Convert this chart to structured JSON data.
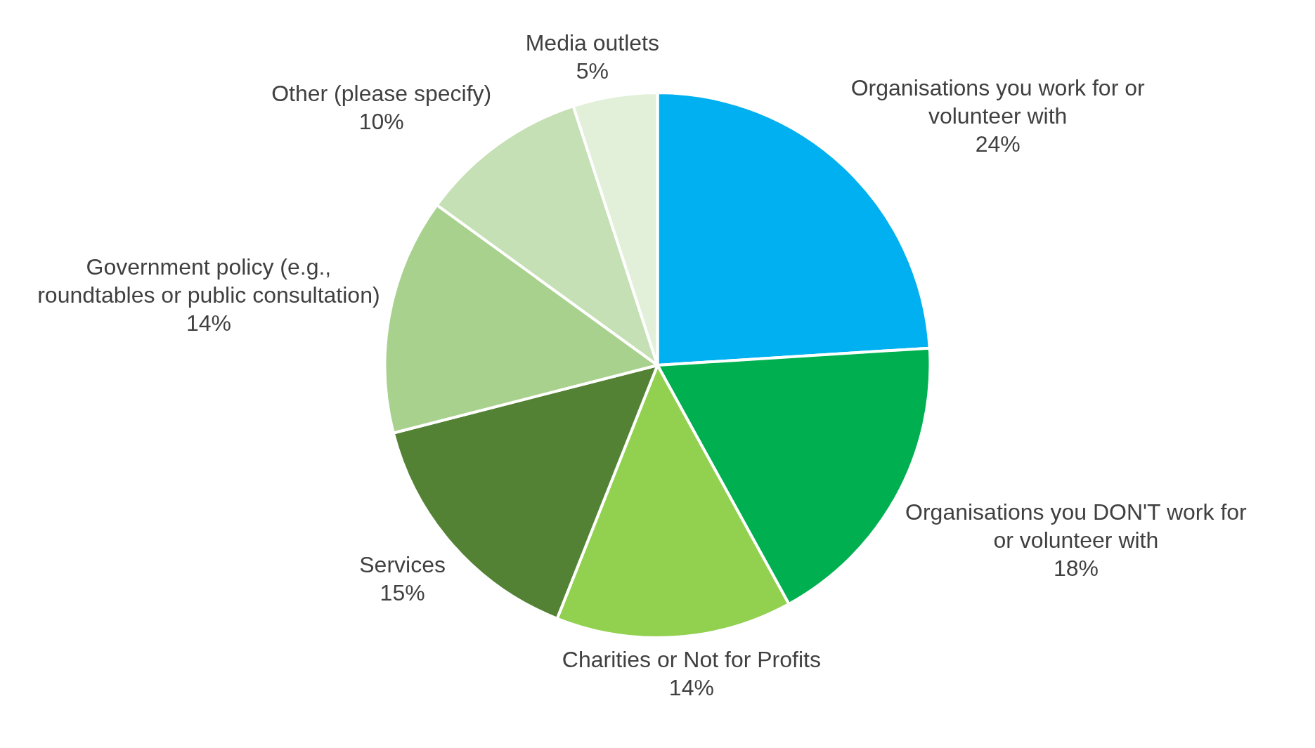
{
  "chart_data": {
    "type": "pie",
    "categories": [
      "Organisations you work for or volunteer with",
      "Organisations you DON'T work for or volunteer with",
      "Charities or Not for Profits",
      "Services",
      "Government policy (e.g., roundtables or public consultation)",
      "Other (please specify)",
      "Media outlets"
    ],
    "values": [
      24,
      18,
      14,
      15,
      14,
      10,
      5
    ],
    "value_labels": [
      "24%",
      "18%",
      "14%",
      "15%",
      "14%",
      "10%",
      "5%"
    ],
    "colors": [
      "#00b0f0",
      "#00b050",
      "#92d050",
      "#548235",
      "#a9d18e",
      "#c5e0b4",
      "#e2f0d9"
    ],
    "legend": false
  }
}
